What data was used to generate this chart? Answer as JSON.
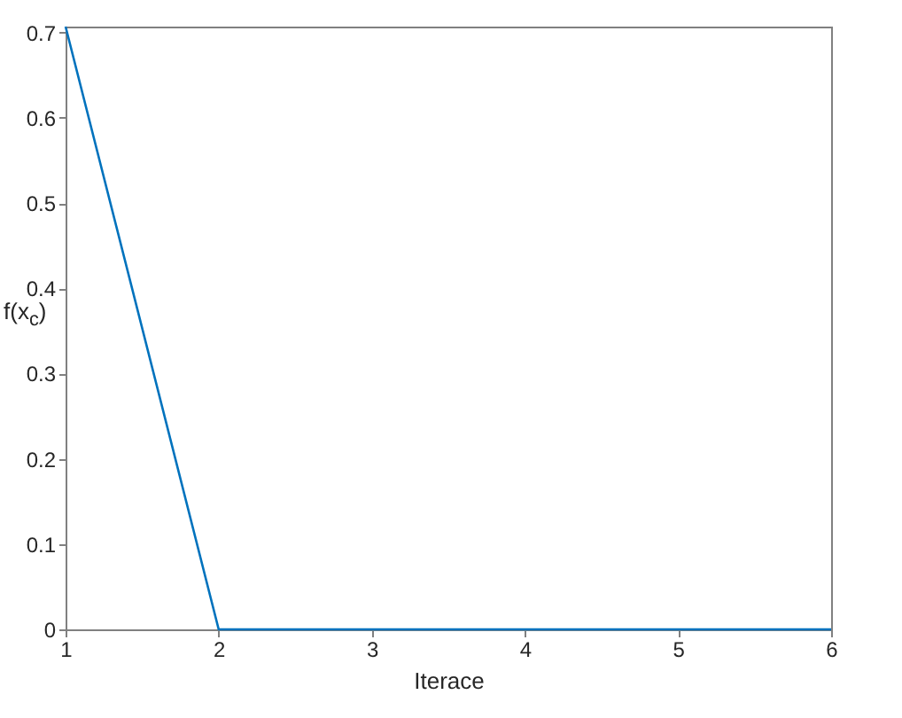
{
  "chart_data": {
    "type": "line",
    "xlabel": "Iterace",
    "ylabel": "f(x$_{c}$)",
    "x": [
      1,
      2,
      3,
      4,
      5,
      6
    ],
    "series": [
      {
        "color": "#0072bd",
        "values": [
          0.707,
          0,
          0,
          0,
          0,
          0
        ]
      }
    ],
    "xlim": [
      1,
      6
    ],
    "xticks": [
      1,
      2,
      3,
      4,
      5,
      6
    ],
    "ylim": [
      0,
      0.707
    ],
    "yticks": [
      0,
      0.1,
      0.2,
      0.3,
      0.4,
      0.5,
      0.6,
      0.7
    ],
    "grid": false,
    "legend": false,
    "marker": "none",
    "line_style": "solid"
  }
}
